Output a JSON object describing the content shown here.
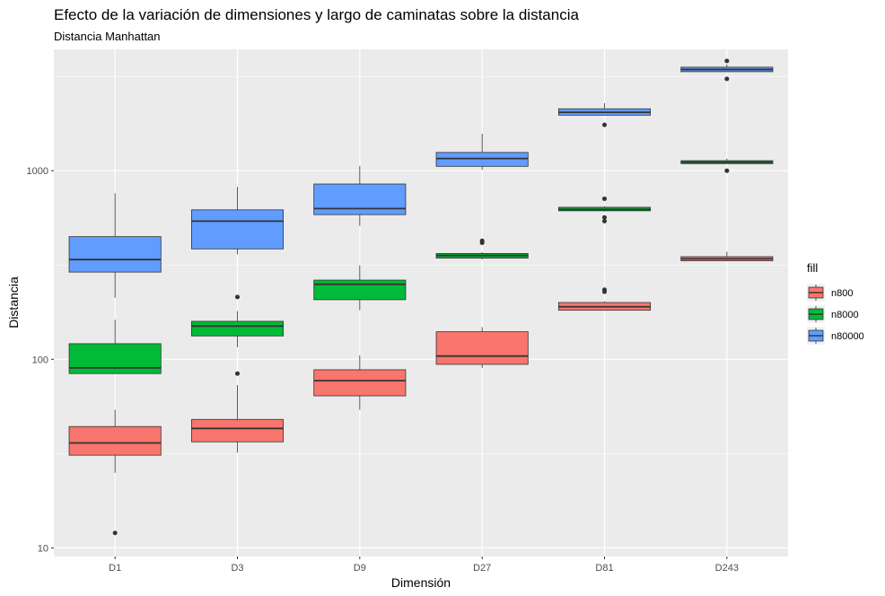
{
  "chart_data": {
    "type": "boxplot",
    "title": "Efecto de la variación de dimensiones y largo de caminatas sobre la distancia",
    "subtitle": "Distancia Manhattan",
    "xlabel": "Dimensión",
    "ylabel": "Distancia",
    "y_scale": "log10",
    "ylim": [
      9,
      4400
    ],
    "y_ticks": [
      10,
      100,
      1000
    ],
    "y_tick_labels": [
      "10",
      "100",
      "1000"
    ],
    "categories": [
      "D1",
      "D3",
      "D9",
      "D27",
      "D81",
      "D243"
    ],
    "grid": true,
    "legend": {
      "title": "fill",
      "position": "right"
    },
    "series": [
      {
        "name": "n800",
        "color": "#F8766D",
        "boxes": [
          {
            "whisker_low": 25,
            "q1": 31,
            "median": 36,
            "q3": 44,
            "whisker_high": 54,
            "outliers": [
              12
            ]
          },
          {
            "whisker_low": 32,
            "q1": 36.5,
            "median": 43,
            "q3": 48,
            "whisker_high": 73,
            "outliers": [
              84
            ]
          },
          {
            "whisker_low": 54,
            "q1": 64,
            "median": 77,
            "q3": 88,
            "whisker_high": 105,
            "outliers": []
          },
          {
            "whisker_low": 90,
            "q1": 94,
            "median": 104,
            "q3": 140,
            "whisker_high": 148,
            "outliers": []
          },
          {
            "whisker_low": 182,
            "q1": 182,
            "median": 190,
            "q3": 200,
            "whisker_high": 203,
            "outliers": [
              228,
              234
            ]
          },
          {
            "whisker_low": 333,
            "q1": 333,
            "median": 341,
            "q3": 350,
            "whisker_high": 372,
            "outliers": []
          }
        ]
      },
      {
        "name": "n8000",
        "color": "#00BA38",
        "boxes": [
          {
            "whisker_low": 84,
            "q1": 84,
            "median": 90,
            "q3": 121,
            "whisker_high": 162,
            "outliers": []
          },
          {
            "whisker_low": 116,
            "q1": 133,
            "median": 150,
            "q3": 159,
            "whisker_high": 180,
            "outliers": [
              214
            ]
          },
          {
            "whisker_low": 182,
            "q1": 207,
            "median": 250,
            "q3": 263,
            "whisker_high": 315,
            "outliers": []
          },
          {
            "whisker_low": 338,
            "q1": 344,
            "median": 355,
            "q3": 364,
            "whisker_high": 370,
            "outliers": [
              415,
              425
            ]
          },
          {
            "whisker_low": 608,
            "q1": 613,
            "median": 623,
            "q3": 640,
            "whisker_high": 648,
            "outliers": [
              540,
              565,
              710
            ]
          },
          {
            "whisker_low": 1090,
            "q1": 1090,
            "median": 1110,
            "q3": 1130,
            "whisker_high": 1160,
            "outliers": [
              1000
            ]
          }
        ]
      },
      {
        "name": "n80000",
        "color": "#619CFF",
        "boxes": [
          {
            "whisker_low": 212,
            "q1": 290,
            "median": 338,
            "q3": 447,
            "whisker_high": 760,
            "outliers": []
          },
          {
            "whisker_low": 360,
            "q1": 385,
            "median": 540,
            "q3": 620,
            "whisker_high": 820,
            "outliers": []
          },
          {
            "whisker_low": 510,
            "q1": 585,
            "median": 630,
            "q3": 850,
            "whisker_high": 1060,
            "outliers": []
          },
          {
            "whisker_low": 1010,
            "q1": 1055,
            "median": 1160,
            "q3": 1250,
            "whisker_high": 1570,
            "outliers": []
          },
          {
            "whisker_low": 1970,
            "q1": 1970,
            "median": 2040,
            "q3": 2130,
            "whisker_high": 2280,
            "outliers": [
              1750
            ]
          },
          {
            "whisker_low": 3350,
            "q1": 3350,
            "median": 3440,
            "q3": 3540,
            "whisker_high": 3660,
            "outliers": [
              3070,
              3820
            ]
          }
        ]
      }
    ]
  }
}
